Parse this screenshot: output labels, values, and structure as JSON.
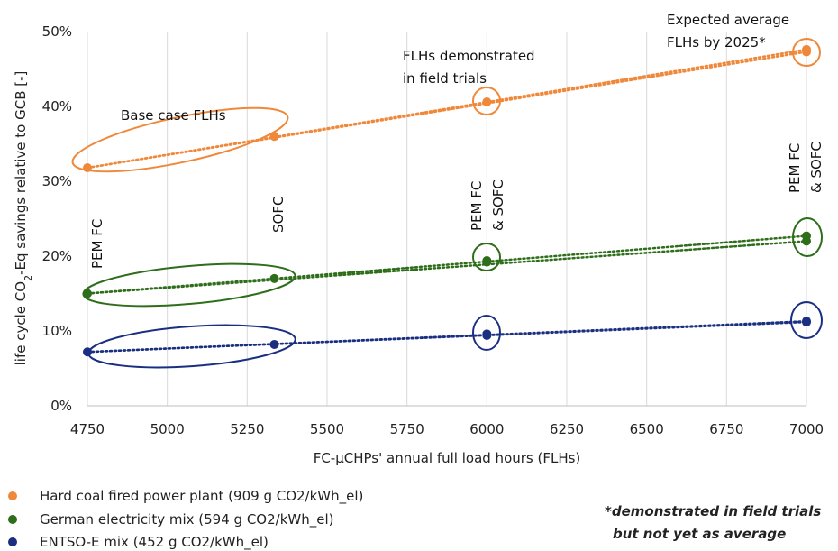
{
  "chart_data": {
    "type": "scatter",
    "x_ticks": [
      "4750",
      "5000",
      "5250",
      "5500",
      "5750",
      "6000",
      "6250",
      "6500",
      "6750",
      "7000"
    ],
    "y_ticks": [
      "0%",
      "10%",
      "20%",
      "30%",
      "40%",
      "50%"
    ],
    "xlim": [
      4750,
      7000
    ],
    "ylim": [
      0,
      50
    ],
    "xlabel": "FC-µCHPs' annual full load hours (FLHs)",
    "ylabel_parts": {
      "before": "life cycle CO",
      "sub": "2",
      "after": "-Eq savings relative to GCB [-]"
    },
    "grid": "vertical",
    "series": [
      {
        "name": "Hard coal fired power plant (909 g CO2/kWh_el)",
        "color": "#f0883a",
        "points": [
          [
            4750,
            31.8
          ],
          [
            5335,
            36.0
          ],
          [
            6000,
            40.6
          ],
          [
            7000,
            47.3
          ],
          [
            7000,
            47.6
          ]
        ]
      },
      {
        "name": "German electricity mix (594 g CO2/kWh_el)",
        "color": "#2e6e1a",
        "points": [
          [
            4750,
            15.0
          ],
          [
            5335,
            17.0
          ],
          [
            6000,
            19.2
          ],
          [
            6000,
            19.4
          ],
          [
            7000,
            22.0
          ],
          [
            7000,
            22.7
          ]
        ]
      },
      {
        "name": "ENTSO-E mix (452 g CO2/kWh_el)",
        "color": "#1a2f82",
        "points": [
          [
            4750,
            7.2
          ],
          [
            5335,
            8.2
          ],
          [
            6000,
            9.4
          ],
          [
            6000,
            9.6
          ],
          [
            7000,
            11.2
          ],
          [
            7000,
            11.3
          ]
        ]
      }
    ],
    "annotations": {
      "base_case": "Base case FLHs",
      "field_trials_1": "FLHs demonstrated",
      "field_trials_2": "in field trials",
      "expected_1": "Expected average",
      "expected_2": "FLHs by 2025*",
      "pemfc": "PEM FC",
      "sofc": "SOFC",
      "pem_sofc_1": "PEM FC",
      "pem_sofc_2": "& SOFC",
      "pem_sofc_7000_1": "PEM FC",
      "pem_sofc_7000_2": "& SOFC"
    },
    "footnote": [
      "*demonstrated in field trials",
      "but not yet as average"
    ]
  }
}
